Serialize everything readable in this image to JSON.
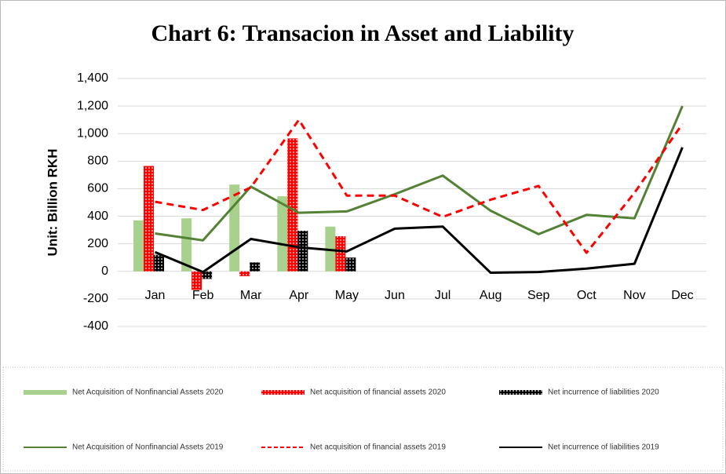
{
  "chart_data": {
    "type": "combo",
    "title": "Chart 6: Transacion in Asset and Liability",
    "y_label": "Unit: Billion RKH",
    "categories": [
      "Jan",
      "Feb",
      "Mar",
      "Apr",
      "May",
      "Jun",
      "Jul",
      "Aug",
      "Sep",
      "Oct",
      "Nov",
      "Dec"
    ],
    "ylim": [
      -400,
      1400
    ],
    "yticks": [
      -400,
      -200,
      0,
      200,
      400,
      600,
      800,
      {
        "value": 1000,
        "label": "1,000"
      },
      {
        "value": 1200,
        "label": "1,200"
      },
      {
        "value": 1400,
        "label": "1,400"
      }
    ],
    "grid": true,
    "legend": "bottom",
    "series": [
      {
        "name": "Net Acquisition of Nonfinancial Assets 2020",
        "type": "bar",
        "color": "#a9d18e",
        "values": [
          370,
          385,
          630,
          545,
          325,
          null,
          null,
          null,
          null,
          null,
          null,
          null
        ]
      },
      {
        "name": "Net acquisition of financial assets 2020",
        "type": "bar",
        "color": "#ff0000",
        "pattern": true,
        "values": [
          765,
          -135,
          -35,
          965,
          255,
          null,
          null,
          null,
          null,
          null,
          null,
          null
        ]
      },
      {
        "name": "Net incurrence of liabilities 2020",
        "type": "bar",
        "color": "#000000",
        "pattern": true,
        "values": [
          120,
          -55,
          65,
          295,
          100,
          null,
          null,
          null,
          null,
          null,
          null,
          null
        ]
      },
      {
        "name": "Net Acquisition of Nonfinancial Assets 2019",
        "type": "line",
        "color": "#548235",
        "values": [
          275,
          225,
          615,
          425,
          435,
          560,
          695,
          440,
          270,
          410,
          385,
          1200
        ]
      },
      {
        "name": "Net acquisition of financial assets 2019",
        "type": "line",
        "color": "#ff0000",
        "dashed": true,
        "values": [
          505,
          445,
          610,
          1100,
          550,
          550,
          395,
          520,
          620,
          135,
          570,
          1070
        ]
      },
      {
        "name": "Net incurrence of liabilities 2019",
        "type": "line",
        "color": "#000000",
        "values": [
          140,
          -5,
          235,
          175,
          145,
          310,
          325,
          -10,
          -5,
          20,
          55,
          900
        ]
      }
    ]
  }
}
